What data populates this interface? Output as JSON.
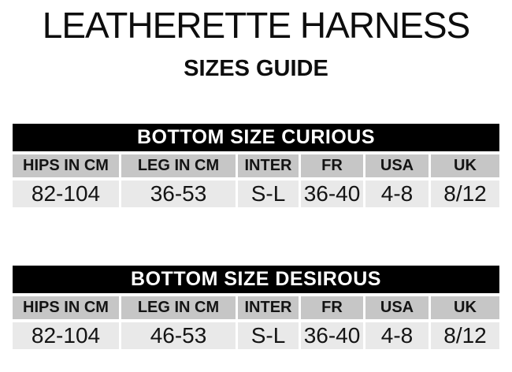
{
  "page": {
    "title": "LEATHERETTE HARNESS",
    "subtitle": "SIZES GUIDE"
  },
  "colors": {
    "title_bar_bg": "#000000",
    "title_bar_text": "#ffffff",
    "header_row_bg": "#c6c6c6",
    "data_row_bg": "#e9e9e9",
    "text": "#111111",
    "background": "#ffffff"
  },
  "tables": [
    {
      "title": "BOTTOM SIZE CURIOUS",
      "columns": [
        "HIPS IN CM",
        "LEG IN CM",
        "INTER",
        "FR",
        "USA",
        "UK"
      ],
      "values": [
        "82-104",
        "36-53",
        "S-L",
        "36-40",
        "4-8",
        "8/12"
      ]
    },
    {
      "title": "BOTTOM SIZE DESIROUS",
      "columns": [
        "HIPS IN CM",
        "LEG IN CM",
        "INTER",
        "FR",
        "USA",
        "UK"
      ],
      "values": [
        "82-104",
        "46-53",
        "S-L",
        "36-40",
        "4-8",
        "8/12"
      ]
    }
  ],
  "chart_data": [
    {
      "type": "table",
      "title": "BOTTOM SIZE CURIOUS",
      "columns": [
        "HIPS IN CM",
        "LEG IN CM",
        "INTER",
        "FR",
        "USA",
        "UK"
      ],
      "rows": [
        [
          "82-104",
          "36-53",
          "S-L",
          "36-40",
          "4-8",
          "8/12"
        ]
      ]
    },
    {
      "type": "table",
      "title": "BOTTOM SIZE DESIROUS",
      "columns": [
        "HIPS IN CM",
        "LEG IN CM",
        "INTER",
        "FR",
        "USA",
        "UK"
      ],
      "rows": [
        [
          "82-104",
          "46-53",
          "S-L",
          "36-40",
          "4-8",
          "8/12"
        ]
      ]
    }
  ]
}
